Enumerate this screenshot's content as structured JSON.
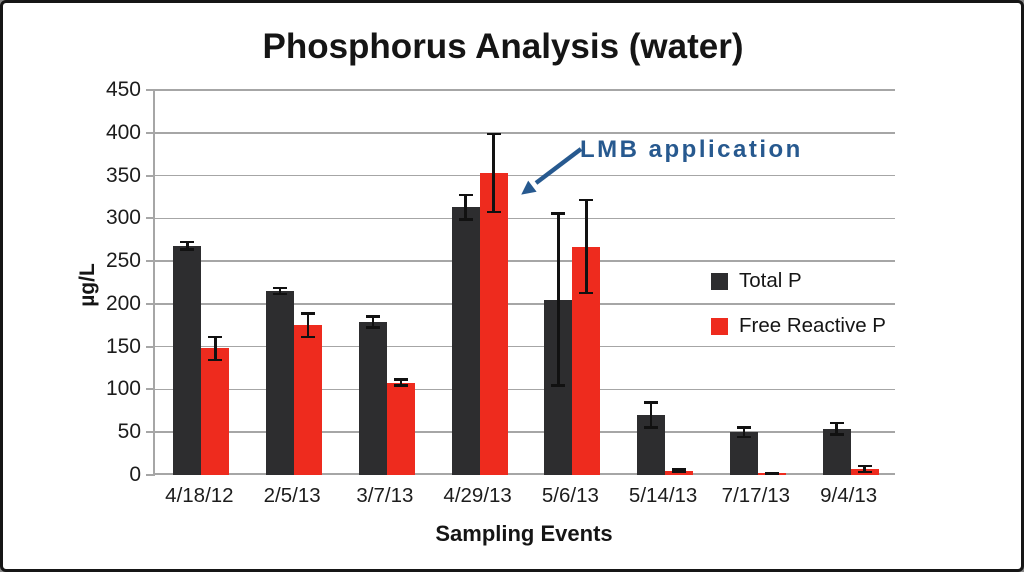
{
  "chart_data": {
    "type": "bar",
    "title": "Phosphorus Analysis (water)",
    "xlabel": "Sampling Events",
    "ylabel": "µg/L",
    "ylim": [
      0,
      450
    ],
    "yticks": [
      0,
      50,
      100,
      150,
      200,
      250,
      300,
      350,
      400,
      450
    ],
    "grid": true,
    "legend_position": "inside-right",
    "categories": [
      "4/18/12",
      "2/5/13",
      "3/7/13",
      "4/29/13",
      "5/6/13",
      "5/14/13",
      "7/17/13",
      "9/4/13"
    ],
    "series": [
      {
        "name": "Total P",
        "color": "#2d2d2f",
        "values": [
          268,
          215,
          179,
          313,
          205,
          70,
          50,
          54
        ],
        "errors": [
          6,
          5,
          8,
          16,
          102,
          16,
          7,
          8
        ]
      },
      {
        "name": "Free Reactive P",
        "color": "#ee2b1e",
        "values": [
          148,
          175,
          108,
          353,
          267,
          5,
          2,
          7
        ],
        "errors": [
          15,
          15,
          5,
          47,
          56,
          3,
          1,
          5
        ]
      }
    ],
    "annotation": {
      "text": "LMB application",
      "color": "#27598f",
      "target_category": "4/29/13"
    }
  }
}
